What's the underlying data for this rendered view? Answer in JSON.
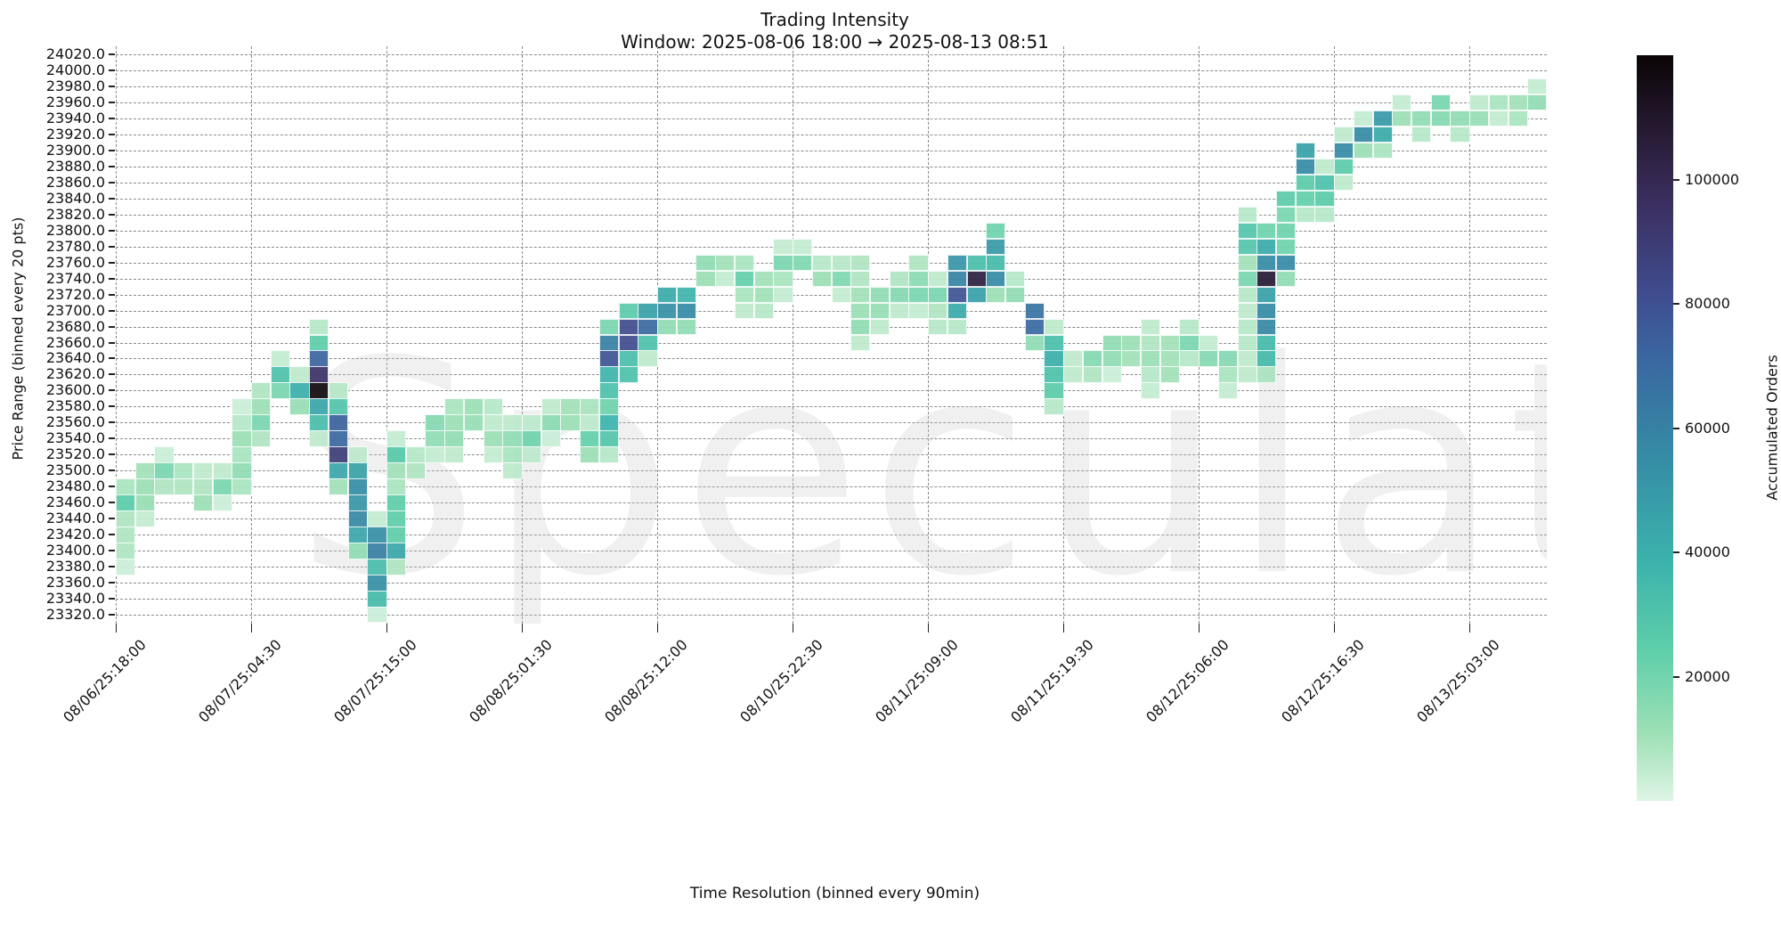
{
  "chart_data": {
    "type": "heatmap",
    "title": "Trading Intensity",
    "subtitle": "Window: 2025-08-06 18:00 → 2025-08-13 08:51",
    "xlabel": "Time Resolution (binned every 90min)",
    "ylabel": "Price Range (binned every 20 pts)",
    "colorbar_label": "Accumulated Orders",
    "colorbar_ticks": [
      20000,
      40000,
      60000,
      80000,
      100000
    ],
    "colorbar_range": [
      0,
      120000
    ],
    "colormap": "mako_r",
    "watermark": "Speculator",
    "x_tick_labels": [
      "08/06/25:18:00",
      "08/07/25:04:30",
      "08/07/25:15:00",
      "08/08/25:01:30",
      "08/08/25:12:00",
      "08/10/25:22:30",
      "08/11/25:09:00",
      "08/11/25:19:30",
      "08/12/25:06:00",
      "08/12/25:16:30",
      "08/13/25:03:00"
    ],
    "x_tick_every_n_columns": 7,
    "n_columns": 74,
    "y_tick_labels": [
      "24020.0",
      "24000.0",
      "23980.0",
      "23960.0",
      "23940.0",
      "23920.0",
      "23900.0",
      "23880.0",
      "23860.0",
      "23840.0",
      "23820.0",
      "23800.0",
      "23780.0",
      "23760.0",
      "23740.0",
      "23720.0",
      "23700.0",
      "23680.0",
      "23660.0",
      "23640.0",
      "23620.0",
      "23600.0",
      "23580.0",
      "23560.0",
      "23540.0",
      "23520.0",
      "23500.0",
      "23480.0",
      "23460.0",
      "23440.0",
      "23420.0",
      "23400.0",
      "23380.0",
      "23360.0",
      "23340.0",
      "23320.0"
    ],
    "ylim": [
      23310,
      24030
    ],
    "grid": true,
    "cells_format": "[column_index, price_bin, accumulated_orders]",
    "cells": [
      [
        0,
        23480,
        8000
      ],
      [
        0,
        23460,
        22000
      ],
      [
        0,
        23440,
        7000
      ],
      [
        0,
        23420,
        7000
      ],
      [
        0,
        23400,
        7000
      ],
      [
        0,
        23380,
        3000
      ],
      [
        1,
        23500,
        9000
      ],
      [
        1,
        23480,
        10000
      ],
      [
        1,
        23460,
        11000
      ],
      [
        1,
        23440,
        4000
      ],
      [
        2,
        23520,
        3000
      ],
      [
        2,
        23500,
        16000
      ],
      [
        2,
        23480,
        7000
      ],
      [
        3,
        23500,
        8000
      ],
      [
        3,
        23480,
        7000
      ],
      [
        4,
        23500,
        5000
      ],
      [
        4,
        23480,
        7000
      ],
      [
        4,
        23460,
        10000
      ],
      [
        5,
        23500,
        5000
      ],
      [
        5,
        23480,
        16000
      ],
      [
        5,
        23460,
        3000
      ],
      [
        6,
        23580,
        3000
      ],
      [
        6,
        23560,
        6000
      ],
      [
        6,
        23540,
        10000
      ],
      [
        6,
        23520,
        8000
      ],
      [
        6,
        23500,
        12000
      ],
      [
        6,
        23480,
        8000
      ],
      [
        7,
        23600,
        7000
      ],
      [
        7,
        23580,
        10000
      ],
      [
        7,
        23560,
        16000
      ],
      [
        7,
        23540,
        7000
      ],
      [
        8,
        23640,
        4000
      ],
      [
        8,
        23620,
        28000
      ],
      [
        8,
        23600,
        16000
      ],
      [
        9,
        23620,
        5000
      ],
      [
        9,
        23600,
        38000
      ],
      [
        9,
        23580,
        11000
      ],
      [
        10,
        23680,
        6000
      ],
      [
        10,
        23660,
        21000
      ],
      [
        10,
        23640,
        72000
      ],
      [
        10,
        23620,
        95000
      ],
      [
        10,
        23600,
        118000
      ],
      [
        10,
        23580,
        42000
      ],
      [
        10,
        23560,
        30000
      ],
      [
        10,
        23540,
        5000
      ],
      [
        11,
        23600,
        6000
      ],
      [
        11,
        23580,
        26000
      ],
      [
        11,
        23560,
        74000
      ],
      [
        11,
        23540,
        70000
      ],
      [
        11,
        23520,
        90000
      ],
      [
        11,
        23500,
        42000
      ],
      [
        11,
        23480,
        9000
      ],
      [
        12,
        23520,
        5000
      ],
      [
        12,
        23500,
        44000
      ],
      [
        12,
        23480,
        54000
      ],
      [
        12,
        23460,
        50000
      ],
      [
        12,
        23440,
        56000
      ],
      [
        12,
        23420,
        42000
      ],
      [
        12,
        23400,
        12000
      ],
      [
        13,
        23440,
        4000
      ],
      [
        13,
        23420,
        52000
      ],
      [
        13,
        23400,
        60000
      ],
      [
        13,
        23380,
        30000
      ],
      [
        13,
        23360,
        52000
      ],
      [
        13,
        23340,
        32000
      ],
      [
        13,
        23320,
        3000
      ],
      [
        14,
        23540,
        4000
      ],
      [
        14,
        23520,
        24000
      ],
      [
        14,
        23500,
        9000
      ],
      [
        14,
        23480,
        8000
      ],
      [
        14,
        23460,
        21000
      ],
      [
        14,
        23440,
        21000
      ],
      [
        14,
        23420,
        21000
      ],
      [
        14,
        23400,
        42000
      ],
      [
        14,
        23380,
        7000
      ],
      [
        15,
        23520,
        6000
      ],
      [
        15,
        23500,
        7000
      ],
      [
        16,
        23560,
        14000
      ],
      [
        16,
        23540,
        12000
      ],
      [
        16,
        23520,
        4000
      ],
      [
        17,
        23580,
        8000
      ],
      [
        17,
        23560,
        10000
      ],
      [
        17,
        23540,
        12000
      ],
      [
        17,
        23520,
        5000
      ],
      [
        18,
        23580,
        10000
      ],
      [
        18,
        23560,
        11000
      ],
      [
        19,
        23580,
        6000
      ],
      [
        19,
        23560,
        5000
      ],
      [
        19,
        23540,
        10000
      ],
      [
        19,
        23520,
        4000
      ],
      [
        20,
        23560,
        5000
      ],
      [
        20,
        23540,
        12000
      ],
      [
        20,
        23520,
        8000
      ],
      [
        20,
        23500,
        5000
      ],
      [
        21,
        23560,
        5000
      ],
      [
        21,
        23540,
        18000
      ],
      [
        21,
        23520,
        5000
      ],
      [
        22,
        23580,
        5000
      ],
      [
        22,
        23560,
        13000
      ],
      [
        22,
        23540,
        3000
      ],
      [
        23,
        23580,
        9000
      ],
      [
        23,
        23560,
        10000
      ],
      [
        24,
        23580,
        8000
      ],
      [
        24,
        23560,
        5000
      ],
      [
        24,
        23540,
        20000
      ],
      [
        24,
        23520,
        10000
      ],
      [
        25,
        23680,
        16000
      ],
      [
        25,
        23660,
        60000
      ],
      [
        25,
        23640,
        80000
      ],
      [
        25,
        23620,
        35000
      ],
      [
        25,
        23600,
        28000
      ],
      [
        25,
        23580,
        18000
      ],
      [
        25,
        23560,
        35000
      ],
      [
        25,
        23540,
        26000
      ],
      [
        25,
        23520,
        6000
      ],
      [
        26,
        23700,
        22000
      ],
      [
        26,
        23680,
        84000
      ],
      [
        26,
        23660,
        84000
      ],
      [
        26,
        23640,
        30000
      ],
      [
        26,
        23620,
        28000
      ],
      [
        27,
        23700,
        45000
      ],
      [
        27,
        23680,
        70000
      ],
      [
        27,
        23660,
        28000
      ],
      [
        27,
        23640,
        5000
      ],
      [
        28,
        23720,
        40000
      ],
      [
        28,
        23700,
        52000
      ],
      [
        28,
        23680,
        12000
      ],
      [
        29,
        23720,
        35000
      ],
      [
        29,
        23700,
        55000
      ],
      [
        29,
        23680,
        12000
      ],
      [
        30,
        23760,
        12000
      ],
      [
        30,
        23740,
        10000
      ],
      [
        31,
        23760,
        9000
      ],
      [
        31,
        23740,
        4000
      ],
      [
        32,
        23760,
        8000
      ],
      [
        32,
        23740,
        20000
      ],
      [
        32,
        23720,
        8000
      ],
      [
        32,
        23700,
        5000
      ],
      [
        33,
        23740,
        9000
      ],
      [
        33,
        23720,
        9000
      ],
      [
        33,
        23700,
        6000
      ],
      [
        34,
        23780,
        4000
      ],
      [
        34,
        23760,
        16000
      ],
      [
        34,
        23740,
        8000
      ],
      [
        34,
        23720,
        4000
      ],
      [
        35,
        23780,
        4000
      ],
      [
        35,
        23760,
        15000
      ],
      [
        36,
        23760,
        6000
      ],
      [
        36,
        23740,
        10000
      ],
      [
        37,
        23760,
        6000
      ],
      [
        37,
        23740,
        15000
      ],
      [
        37,
        23720,
        4000
      ],
      [
        38,
        23760,
        7000
      ],
      [
        38,
        23740,
        7000
      ],
      [
        38,
        23720,
        9000
      ],
      [
        38,
        23700,
        10000
      ],
      [
        38,
        23680,
        12000
      ],
      [
        38,
        23660,
        5000
      ],
      [
        39,
        23720,
        12000
      ],
      [
        39,
        23700,
        11000
      ],
      [
        39,
        23680,
        5000
      ],
      [
        40,
        23740,
        7000
      ],
      [
        40,
        23720,
        14000
      ],
      [
        40,
        23700,
        5000
      ],
      [
        41,
        23760,
        7000
      ],
      [
        41,
        23740,
        13000
      ],
      [
        41,
        23720,
        16000
      ],
      [
        41,
        23700,
        4000
      ],
      [
        42,
        23740,
        5000
      ],
      [
        42,
        23720,
        16000
      ],
      [
        42,
        23700,
        7000
      ],
      [
        42,
        23680,
        6000
      ],
      [
        43,
        23760,
        50000
      ],
      [
        43,
        23740,
        58000
      ],
      [
        43,
        23720,
        80000
      ],
      [
        43,
        23700,
        40000
      ],
      [
        43,
        23680,
        6000
      ],
      [
        44,
        23760,
        30000
      ],
      [
        44,
        23740,
        105000
      ],
      [
        44,
        23720,
        45000
      ],
      [
        45,
        23800,
        18000
      ],
      [
        45,
        23780,
        48000
      ],
      [
        45,
        23760,
        32000
      ],
      [
        45,
        23740,
        55000
      ],
      [
        45,
        23720,
        10000
      ],
      [
        46,
        23740,
        6000
      ],
      [
        46,
        23720,
        12000
      ],
      [
        47,
        23700,
        66000
      ],
      [
        47,
        23680,
        70000
      ],
      [
        47,
        23660,
        12000
      ],
      [
        48,
        23680,
        5000
      ],
      [
        48,
        23660,
        30000
      ],
      [
        48,
        23640,
        38000
      ],
      [
        48,
        23620,
        28000
      ],
      [
        48,
        23600,
        22000
      ],
      [
        48,
        23580,
        6000
      ],
      [
        49,
        23640,
        5000
      ],
      [
        49,
        23620,
        5000
      ],
      [
        50,
        23640,
        14000
      ],
      [
        50,
        23620,
        7000
      ],
      [
        51,
        23660,
        12000
      ],
      [
        51,
        23640,
        12000
      ],
      [
        51,
        23620,
        3000
      ],
      [
        52,
        23660,
        10000
      ],
      [
        52,
        23640,
        9000
      ],
      [
        53,
        23680,
        5000
      ],
      [
        53,
        23660,
        7000
      ],
      [
        53,
        23640,
        10000
      ],
      [
        53,
        23620,
        6000
      ],
      [
        53,
        23600,
        4000
      ],
      [
        54,
        23660,
        9000
      ],
      [
        54,
        23640,
        9000
      ],
      [
        54,
        23620,
        9000
      ],
      [
        55,
        23680,
        6000
      ],
      [
        55,
        23660,
        16000
      ],
      [
        55,
        23640,
        6000
      ],
      [
        56,
        23660,
        4000
      ],
      [
        56,
        23640,
        14000
      ],
      [
        57,
        23640,
        14000
      ],
      [
        57,
        23620,
        8000
      ],
      [
        57,
        23600,
        4000
      ],
      [
        58,
        23820,
        6000
      ],
      [
        58,
        23800,
        26000
      ],
      [
        58,
        23780,
        26000
      ],
      [
        58,
        23760,
        9000
      ],
      [
        58,
        23740,
        16000
      ],
      [
        58,
        23720,
        6000
      ],
      [
        58,
        23700,
        5000
      ],
      [
        58,
        23680,
        6000
      ],
      [
        58,
        23660,
        6000
      ],
      [
        58,
        23640,
        5000
      ],
      [
        58,
        23620,
        5000
      ],
      [
        59,
        23800,
        18000
      ],
      [
        59,
        23780,
        40000
      ],
      [
        59,
        23760,
        55000
      ],
      [
        59,
        23740,
        108000
      ],
      [
        59,
        23720,
        45000
      ],
      [
        59,
        23700,
        55000
      ],
      [
        59,
        23680,
        56000
      ],
      [
        59,
        23660,
        32000
      ],
      [
        59,
        23640,
        32000
      ],
      [
        59,
        23620,
        8000
      ],
      [
        60,
        23840,
        22000
      ],
      [
        60,
        23820,
        16000
      ],
      [
        60,
        23800,
        18000
      ],
      [
        60,
        23780,
        18000
      ],
      [
        60,
        23760,
        55000
      ],
      [
        60,
        23740,
        12000
      ],
      [
        61,
        23900,
        45000
      ],
      [
        61,
        23880,
        55000
      ],
      [
        61,
        23860,
        22000
      ],
      [
        61,
        23840,
        20000
      ],
      [
        61,
        23820,
        6000
      ],
      [
        62,
        23880,
        5000
      ],
      [
        62,
        23860,
        28000
      ],
      [
        62,
        23840,
        22000
      ],
      [
        62,
        23820,
        6000
      ],
      [
        63,
        23920,
        5000
      ],
      [
        63,
        23900,
        55000
      ],
      [
        63,
        23880,
        22000
      ],
      [
        63,
        23860,
        5000
      ],
      [
        64,
        23940,
        4000
      ],
      [
        64,
        23920,
        55000
      ],
      [
        64,
        23900,
        10000
      ],
      [
        65,
        23940,
        48000
      ],
      [
        65,
        23920,
        40000
      ],
      [
        65,
        23900,
        8000
      ],
      [
        66,
        23960,
        4000
      ],
      [
        66,
        23940,
        10000
      ],
      [
        67,
        23940,
        12000
      ],
      [
        67,
        23920,
        6000
      ],
      [
        68,
        23960,
        16000
      ],
      [
        68,
        23940,
        14000
      ],
      [
        69,
        23940,
        12000
      ],
      [
        69,
        23920,
        6000
      ],
      [
        70,
        23960,
        5000
      ],
      [
        70,
        23940,
        11000
      ],
      [
        71,
        23960,
        8000
      ],
      [
        71,
        23940,
        4000
      ],
      [
        72,
        23960,
        9000
      ],
      [
        72,
        23940,
        8000
      ],
      [
        73,
        23980,
        4000
      ],
      [
        73,
        23960,
        12000
      ]
    ]
  }
}
